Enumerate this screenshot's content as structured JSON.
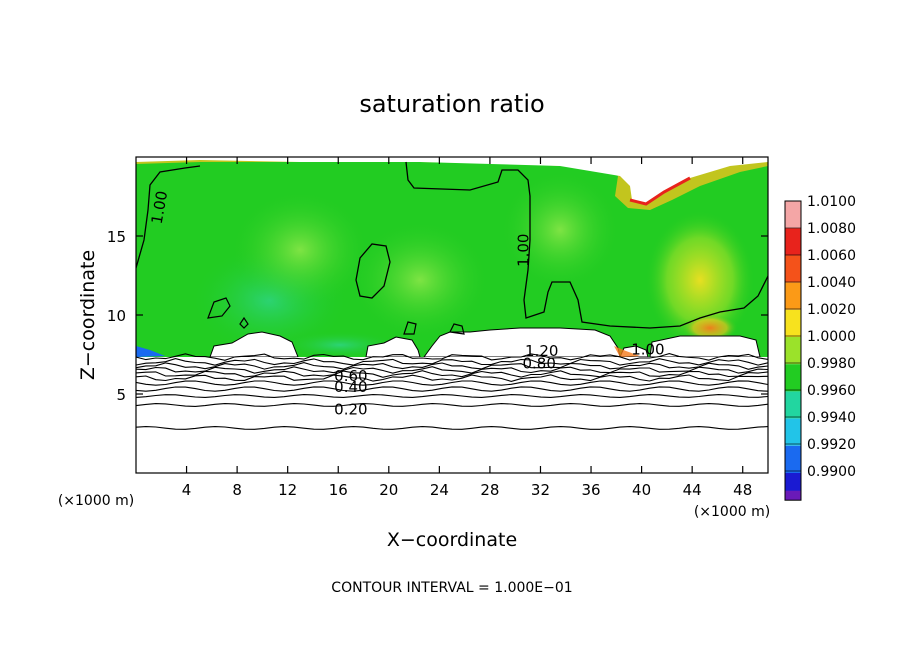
{
  "chart_data": {
    "type": "heatmap",
    "title": "saturation ratio",
    "xlabel": "X−coordinate",
    "ylabel": "Z−coordinate",
    "x_unit_left": "(×1000 m)",
    "x_unit_right": "(×1000 m)",
    "xlim": [
      0,
      50
    ],
    "ylim": [
      0,
      20
    ],
    "xticks": [
      4,
      8,
      12,
      16,
      20,
      24,
      28,
      32,
      36,
      40,
      44,
      48
    ],
    "yticks": [
      5,
      10,
      15
    ],
    "footer": "CONTOUR INTERVAL = 1.000E−01",
    "colorbar": {
      "levels": [
        {
          "value": "1.0100",
          "color": "#f4a6a6"
        },
        {
          "value": "1.0080",
          "color": "#e8231c"
        },
        {
          "value": "1.0060",
          "color": "#f4521a"
        },
        {
          "value": "1.0040",
          "color": "#fb9a17"
        },
        {
          "value": "1.0020",
          "color": "#f7e21e"
        },
        {
          "value": "1.0000",
          "color": "#9be22a"
        },
        {
          "value": "0.9980",
          "color": "#22cc22"
        },
        {
          "value": "0.9960",
          "color": "#22d6a0"
        },
        {
          "value": "0.9940",
          "color": "#22c4e8"
        },
        {
          "value": "0.9920",
          "color": "#1a6af0"
        },
        {
          "value": "0.9900",
          "color": "#1a1ad2"
        }
      ],
      "bottom_color": "#6a1ab8"
    },
    "field_color": "#22cc22",
    "contour_labels": [
      {
        "text": "1.00",
        "x": 1.9,
        "y": 16.8,
        "rotate": -80
      },
      {
        "text": "1.00",
        "x": 30.7,
        "y": 14.1,
        "rotate": -90
      },
      {
        "text": "1.20",
        "x": 32.1,
        "y": 7.7,
        "rotate": 0
      },
      {
        "text": "0.80",
        "x": 31.9,
        "y": 6.9,
        "rotate": 0
      },
      {
        "text": "1.00",
        "x": 40.5,
        "y": 7.8,
        "rotate": 0
      },
      {
        "text": "0.60",
        "x": 17.0,
        "y": 6.1,
        "rotate": 0
      },
      {
        "text": "0.40",
        "x": 17.0,
        "y": 5.4,
        "rotate": 0
      },
      {
        "text": "0.20",
        "x": 17.0,
        "y": 4.0,
        "rotate": 0
      }
    ]
  }
}
